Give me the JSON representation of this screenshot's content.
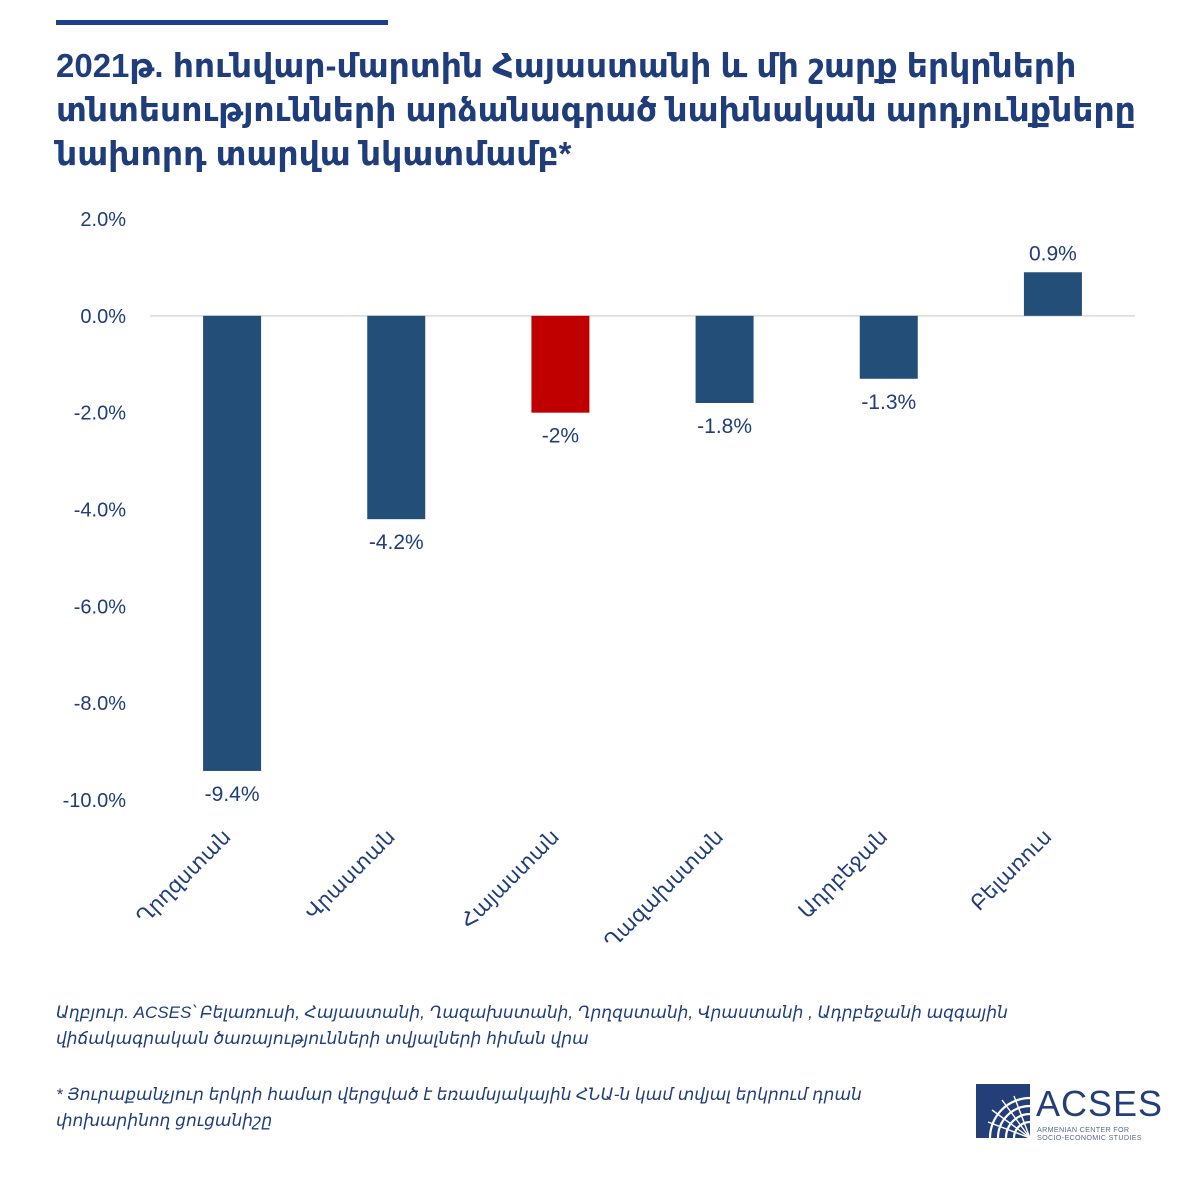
{
  "chart_data": {
    "type": "bar",
    "title": "2021թ. հունվար-մարտին Հայաստանի և մի շարք երկրների տնտեսությունների արձանագրած նախնական արդյունքները նախորդ տարվա նկատմամբ*",
    "categories": [
      "Ղրղզստան",
      "Վրաստան",
      "Հայաստան",
      "Ղազախստան",
      "Ադրբեջան",
      "Բելառուս"
    ],
    "values": [
      -9.4,
      -4.2,
      -2.0,
      -1.8,
      -1.3,
      0.9
    ],
    "data_labels": [
      "-9.4%",
      "-4.2%",
      "-2%",
      "-1.8%",
      "-1.3%",
      "0.9%"
    ],
    "highlight_index": 2,
    "ylim": [
      -10,
      2
    ],
    "yticks": [
      2,
      0,
      -2,
      -4,
      -6,
      -8,
      -10
    ],
    "ytick_labels": [
      "2.0%",
      "0.0%",
      "-2.0%",
      "-4.0%",
      "-6.0%",
      "-8.0%",
      "-10.0%"
    ],
    "xlabel": "",
    "ylabel": "",
    "grid": false,
    "colors": {
      "bar": "#234e78",
      "highlight": "#c00000",
      "text": "#1f3d7a",
      "baseline": "#d9d9d9",
      "rule": "#1f3f8f"
    }
  },
  "notes": {
    "source": "Աղբյուր. ACSES՝ Բելառուսի, Հայաստանի, Ղազախստանի, Ղրղզստանի, Վրաստանի , Ադրբեջանի ազգային վիճակագրական ծառայությունների տվյալների հիման վրա",
    "footnote": "* Յուրաքանչյուր երկրի համար վերցված է եռամսյակային ՀՆԱ-ն կամ տվյալ երկրում դրան փոխարինող ցուցանիշը"
  },
  "logo": {
    "name": "ACSES",
    "subtitle": "ARMENIAN CENTER FOR SOCIO-ECONOMIC STUDIES",
    "icon": "acses-logo-arcs-icon"
  }
}
